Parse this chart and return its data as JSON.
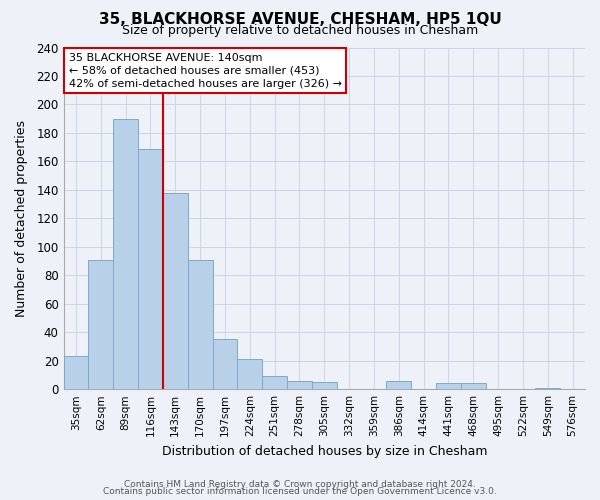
{
  "title": "35, BLACKHORSE AVENUE, CHESHAM, HP5 1QU",
  "subtitle": "Size of property relative to detached houses in Chesham",
  "xlabel": "Distribution of detached houses by size in Chesham",
  "ylabel": "Number of detached properties",
  "bar_color": "#b8d0e8",
  "bar_edge_color": "#7aaad0",
  "categories": [
    "35sqm",
    "62sqm",
    "89sqm",
    "116sqm",
    "143sqm",
    "170sqm",
    "197sqm",
    "224sqm",
    "251sqm",
    "278sqm",
    "305sqm",
    "332sqm",
    "359sqm",
    "386sqm",
    "414sqm",
    "441sqm",
    "468sqm",
    "495sqm",
    "522sqm",
    "549sqm",
    "576sqm"
  ],
  "values": [
    23,
    91,
    190,
    169,
    138,
    91,
    35,
    21,
    9,
    6,
    5,
    0,
    0,
    6,
    0,
    4,
    4,
    0,
    0,
    1,
    0
  ],
  "vline_color": "#cc0000",
  "vline_bar_index": 3,
  "annotation_title": "35 BLACKHORSE AVENUE: 140sqm",
  "annotation_line1": "← 58% of detached houses are smaller (453)",
  "annotation_line2": "42% of semi-detached houses are larger (326) →",
  "annotation_box_color": "#ffffff",
  "annotation_box_edge": "#cc0000",
  "ylim": [
    0,
    240
  ],
  "yticks": [
    0,
    20,
    40,
    60,
    80,
    100,
    120,
    140,
    160,
    180,
    200,
    220,
    240
  ],
  "grid_color": "#ccd6e8",
  "background_color": "#eef2f8",
  "footer_line1": "Contains HM Land Registry data © Crown copyright and database right 2024.",
  "footer_line2": "Contains public sector information licensed under the Open Government Licence v3.0."
}
